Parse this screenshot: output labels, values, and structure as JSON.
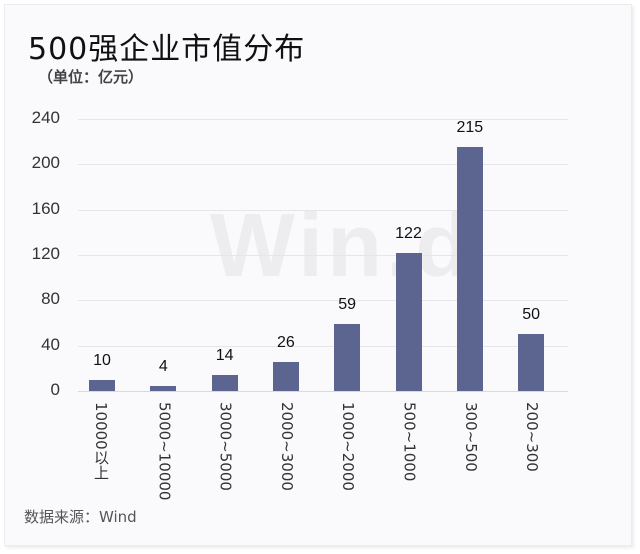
{
  "header": {
    "title": "500强企业市值分布",
    "unit": "（单位：亿元）"
  },
  "watermark": "Win.d",
  "footer": {
    "source": "数据来源：Wind"
  },
  "colors": {
    "bar": "#5b6590",
    "grid": "#e6e6ea",
    "background": "#fafafc"
  },
  "chart_data": {
    "type": "bar",
    "title": "500强企业市值分布",
    "subtitle": "（单位：亿元）",
    "xlabel": "",
    "ylabel": "",
    "categories": [
      "10000以上",
      "5000~10000",
      "3000~5000",
      "2000~3000",
      "1000~2000",
      "500~1000",
      "300~500",
      "200~300"
    ],
    "values": [
      10,
      4,
      14,
      26,
      59,
      122,
      215,
      50
    ],
    "ylim": [
      0,
      240
    ],
    "yticks": [
      "0",
      "40",
      "80",
      "120",
      "160",
      "200",
      "240"
    ],
    "grid": true,
    "legend": "none",
    "data_labels": [
      "10",
      "4",
      "14",
      "26",
      "59",
      "122",
      "215",
      "50"
    ],
    "source": "数据来源：Wind"
  }
}
